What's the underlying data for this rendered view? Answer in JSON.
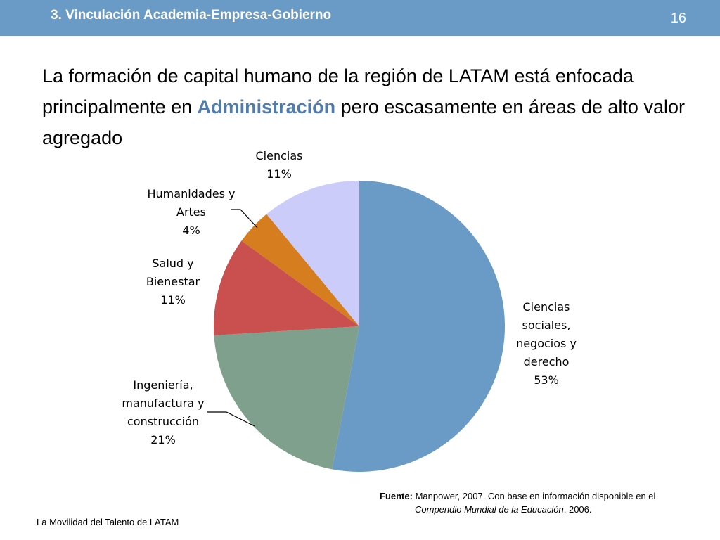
{
  "header": {
    "section_title": "3. Vinculación Academia-Empresa-Gobierno",
    "page_number": "16"
  },
  "headline": {
    "part1": "La formación de capital humano de la región de LATAM está enfocada principalmente en ",
    "highlight": "Administración",
    "part2": " pero escasamente en áreas de alto valor agregado"
  },
  "chart_data": {
    "type": "pie",
    "slices": [
      {
        "label_lines": [
          "Ciencias",
          "sociales,",
          "negocios y",
          "derecho"
        ],
        "pct_label": "53%",
        "value": 53,
        "color": "#6a9ac6"
      },
      {
        "label_lines": [
          "Ingeniería,",
          "manufactura y",
          "construcción"
        ],
        "pct_label": "21%",
        "value": 21,
        "color": "#7fa08c"
      },
      {
        "label_lines": [
          "Salud y",
          "Bienestar"
        ],
        "pct_label": "11%",
        "value": 11,
        "color": "#c9504f"
      },
      {
        "label_lines": [
          "Humanidades y",
          "Artes"
        ],
        "pct_label": "4%",
        "value": 4,
        "color": "#d57d1f"
      },
      {
        "label_lines": [
          "Ciencias"
        ],
        "pct_label": "11%",
        "value": 11,
        "color": "#ccccfa"
      }
    ]
  },
  "source": {
    "bold": "Fuente:",
    "text": " Manpower, 2007. Con base en información disponible en el",
    "italic": "Compendio Mundial de la Educación",
    "tail": ", 2006."
  },
  "footer": "La Movilidad del Talento de LATAM"
}
